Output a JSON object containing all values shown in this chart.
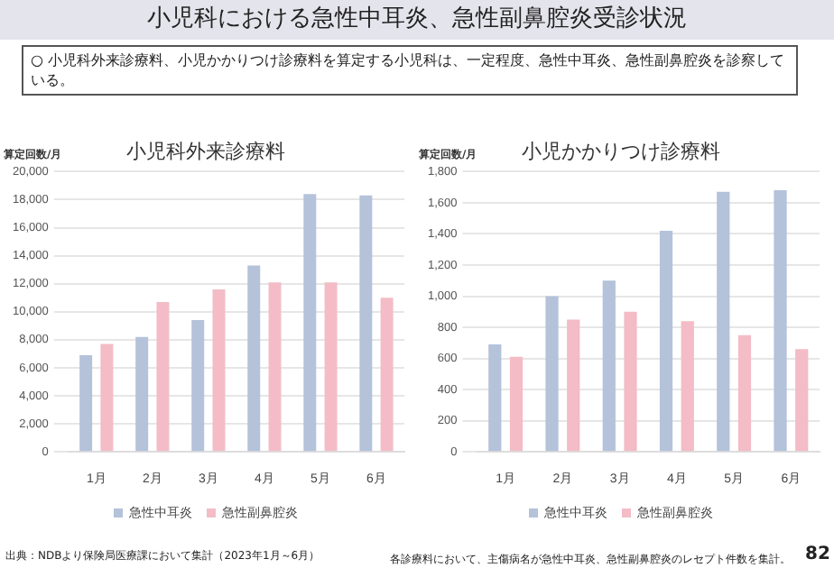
{
  "chart_data": [
    {
      "type": "bar",
      "title": "小児科外来診療料",
      "ylabel": "算定回数/月",
      "categories": [
        "1月",
        "2月",
        "3月",
        "4月",
        "5月",
        "6月"
      ],
      "series": [
        {
          "name": "急性中耳炎",
          "color": "#b4c2da",
          "values": [
            6900,
            8200,
            9400,
            13300,
            18400,
            18300
          ]
        },
        {
          "name": "急性副鼻腔炎",
          "color": "#f3bcc6",
          "values": [
            7700,
            10700,
            11600,
            12100,
            12100,
            11000
          ]
        }
      ],
      "ylim": [
        0,
        20000
      ],
      "yticks": [
        {
          "value": 0,
          "label": "0"
        },
        {
          "value": 2000,
          "label": "2,000"
        },
        {
          "value": 4000,
          "label": "4,000"
        },
        {
          "value": 6000,
          "label": "6,000"
        },
        {
          "value": 8000,
          "label": "8,000"
        },
        {
          "value": 10000,
          "label": "10,000"
        },
        {
          "value": 12000,
          "label": "12,000"
        },
        {
          "value": 14000,
          "label": "14,000"
        },
        {
          "value": 16000,
          "label": "16,000"
        },
        {
          "value": 18000,
          "label": "18,000"
        },
        {
          "value": 20000,
          "label": "20,000"
        }
      ],
      "grid": "y",
      "legend": "bottom",
      "annotations": [
        "小児科における急性中耳炎、急性副鼻腔炎受診状況",
        "○ 小児科外来診療料、小児かかりつけ診療料を算定する小児科は、一定程度、急性中耳炎、急性副鼻腔炎を診察している。",
        "出典：NDBより保険局医療課において集計（2023年1月～6月）"
      ]
    },
    {
      "type": "bar",
      "title": "小児かかりつけ診療料",
      "ylabel": "算定回数/月",
      "categories": [
        "1月",
        "2月",
        "3月",
        "4月",
        "5月",
        "6月"
      ],
      "series": [
        {
          "name": "急性中耳炎",
          "color": "#b4c2da",
          "values": [
            690,
            1000,
            1100,
            1420,
            1670,
            1680
          ]
        },
        {
          "name": "急性副鼻腔炎",
          "color": "#f3bcc6",
          "values": [
            610,
            850,
            900,
            840,
            750,
            660
          ]
        }
      ],
      "ylim": [
        0,
        1800
      ],
      "yticks": [
        {
          "value": 0,
          "label": "0"
        },
        {
          "value": 200,
          "label": "200"
        },
        {
          "value": 400,
          "label": "400"
        },
        {
          "value": 600,
          "label": "600"
        },
        {
          "value": 800,
          "label": "800"
        },
        {
          "value": 1000,
          "label": "1,000"
        },
        {
          "value": 1200,
          "label": "1,200"
        },
        {
          "value": 1400,
          "label": "1,400"
        },
        {
          "value": 1600,
          "label": "1,600"
        },
        {
          "value": 1800,
          "label": "1,800"
        }
      ],
      "grid": "y",
      "legend": "bottom",
      "annotations": [
        "各診療料において、主傷病名が急性中耳炎、急性副鼻腔炎のレセプト件数を集計。",
        "82"
      ]
    }
  ]
}
